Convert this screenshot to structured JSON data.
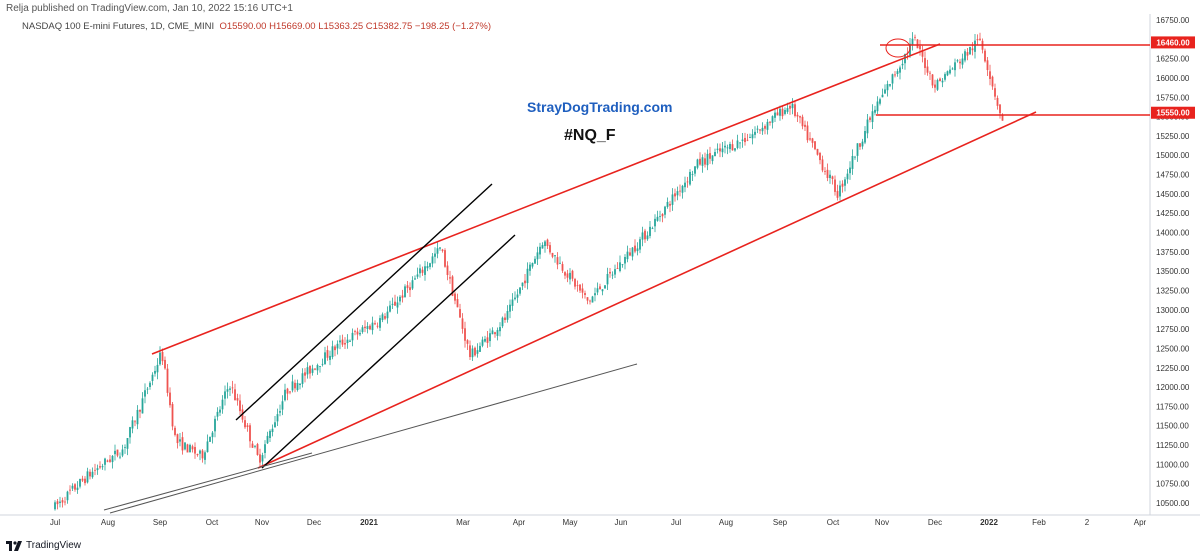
{
  "header": {
    "published": "Relja published on TradingView.com, Jan 10, 2022 15:16 UTC+1",
    "symbol_desc": "NASDAQ 100 E-mini Futures, 1D, CME_MINI",
    "ohlc_open": "O15590.00",
    "ohlc_high": "H15669.00",
    "ohlc_low": "L15363.25",
    "ohlc_close": "C15382.75",
    "ohlc_change": "−198.25 (−1.27%)"
  },
  "annotations": {
    "watermark": "StrayDogTrading.com",
    "ticker": "#NQ_F"
  },
  "footer": {
    "brand": "TradingView"
  },
  "colors": {
    "up": "#26a69a",
    "down": "#ef5350",
    "channel": "#e8231e",
    "trendline": "#000000",
    "price_badge": "#e8231e"
  },
  "chart_data": {
    "type": "candlestick",
    "title": "NASDAQ 100 E-mini Futures, 1D, CME_MINI",
    "x_tick_labels": [
      "Jul",
      "Aug",
      "Sep",
      "Oct",
      "Nov",
      "Dec",
      "2021",
      "Mar",
      "Apr",
      "May",
      "Jun",
      "Jul",
      "Aug",
      "Sep",
      "Oct",
      "Nov",
      "Dec",
      "2022",
      "Feb",
      "2",
      "Apr"
    ],
    "y_tick_labels": [
      "16750.00",
      "16500.00",
      "16250.00",
      "16000.00",
      "15750.00",
      "15500.00",
      "15250.00",
      "15000.00",
      "14750.00",
      "14500.00",
      "14250.00",
      "14000.00",
      "13750.00",
      "13500.00",
      "13250.00",
      "13000.00",
      "12750.00",
      "12500.00",
      "12250.00",
      "12000.00",
      "11750.00",
      "11500.00",
      "11250.00",
      "11000.00",
      "10750.00",
      "10500.00"
    ],
    "ylim": [
      10350,
      16850
    ],
    "price_levels": [
      {
        "value": 16460,
        "label": "16460.00"
      },
      {
        "value": 15550,
        "label": "15550.00"
      }
    ],
    "approx_close_path": [
      {
        "x": "2020-07-01",
        "y": 10450
      },
      {
        "x": "2020-07-20",
        "y": 10850
      },
      {
        "x": "2020-08-10",
        "y": 11200
      },
      {
        "x": "2020-09-02",
        "y": 12450
      },
      {
        "x": "2020-09-10",
        "y": 11300
      },
      {
        "x": "2020-09-25",
        "y": 11100
      },
      {
        "x": "2020-10-12",
        "y": 12050
      },
      {
        "x": "2020-10-30",
        "y": 11050
      },
      {
        "x": "2020-11-15",
        "y": 11950
      },
      {
        "x": "2020-12-15",
        "y": 12550
      },
      {
        "x": "2021-01-10",
        "y": 12900
      },
      {
        "x": "2021-02-15",
        "y": 13800
      },
      {
        "x": "2021-03-05",
        "y": 12400
      },
      {
        "x": "2021-03-25",
        "y": 12900
      },
      {
        "x": "2021-04-15",
        "y": 13900
      },
      {
        "x": "2021-05-12",
        "y": 13100
      },
      {
        "x": "2021-06-15",
        "y": 14000
      },
      {
        "x": "2021-07-15",
        "y": 14900
      },
      {
        "x": "2021-08-15",
        "y": 15250
      },
      {
        "x": "2021-09-07",
        "y": 15650
      },
      {
        "x": "2021-10-04",
        "y": 14500
      },
      {
        "x": "2021-10-25",
        "y": 15500
      },
      {
        "x": "2021-11-19",
        "y": 16500
      },
      {
        "x": "2021-12-01",
        "y": 15900
      },
      {
        "x": "2021-12-27",
        "y": 16500
      },
      {
        "x": "2022-01-10",
        "y": 15383
      }
    ]
  }
}
